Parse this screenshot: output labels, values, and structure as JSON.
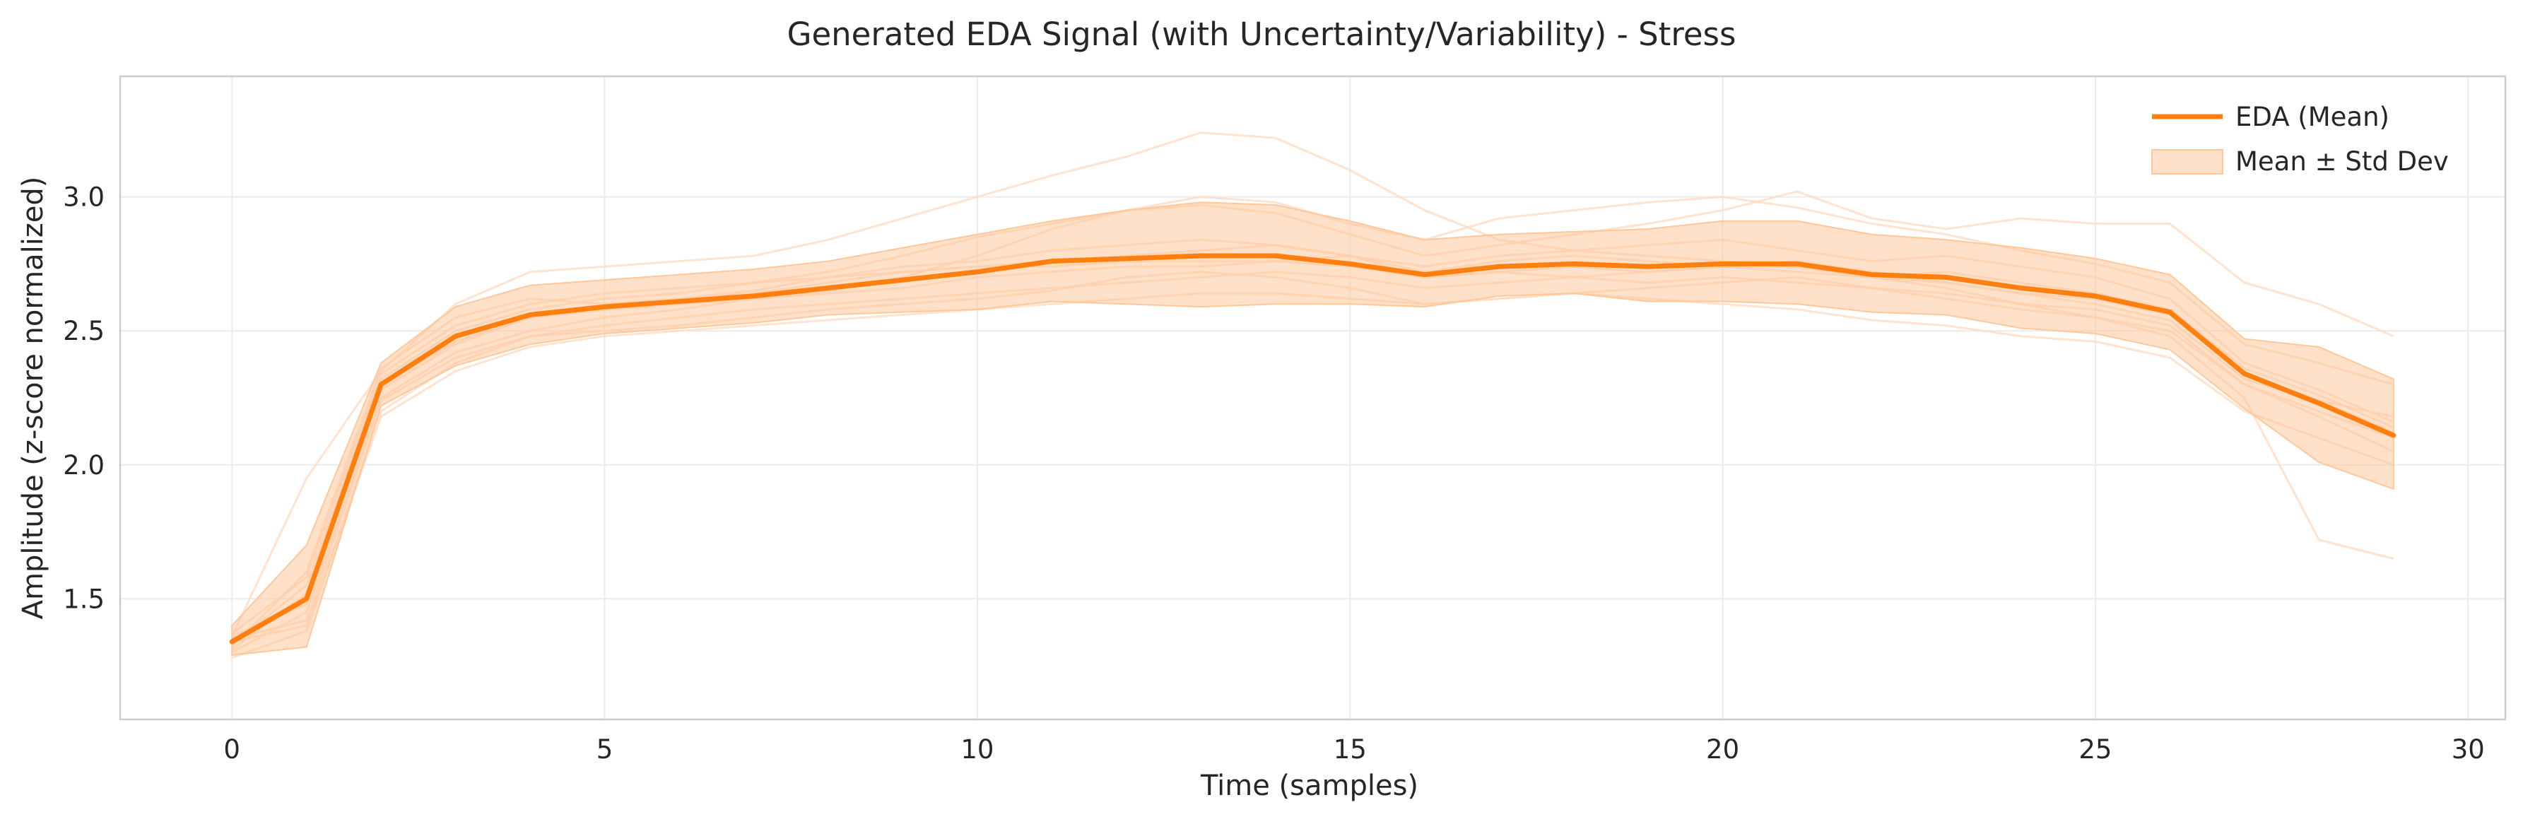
{
  "chart_data": {
    "type": "line",
    "title": "Generated EDA Signal (with Uncertainty/Variability) - Stress",
    "xlabel": "Time (samples)",
    "ylabel": "Amplitude (z-score normalized)",
    "xlim": [
      -1.5,
      30.5
    ],
    "ylim": [
      1.05,
      3.45
    ],
    "x_ticks": [
      0,
      5,
      10,
      15,
      20,
      25,
      30
    ],
    "y_ticks": [
      1.5,
      2.0,
      2.5,
      3.0
    ],
    "grid": true,
    "legend_position": "top-right",
    "colors": {
      "mean": "#ff7f0e",
      "band": "#ffc79a",
      "samples": "#ffd9bd"
    },
    "x": [
      0,
      1,
      2,
      3,
      4,
      5,
      6,
      7,
      8,
      9,
      10,
      11,
      12,
      13,
      14,
      15,
      16,
      17,
      18,
      19,
      20,
      21,
      22,
      23,
      24,
      25,
      26,
      27,
      28,
      29
    ],
    "series": [
      {
        "name": "EDA (Mean)",
        "values": [
          1.34,
          1.5,
          2.3,
          2.48,
          2.56,
          2.59,
          2.61,
          2.63,
          2.66,
          2.69,
          2.72,
          2.76,
          2.77,
          2.78,
          2.78,
          2.75,
          2.71,
          2.74,
          2.75,
          2.74,
          2.75,
          2.75,
          2.71,
          2.7,
          2.66,
          2.63,
          2.57,
          2.34,
          2.23,
          2.11
        ]
      },
      {
        "name": "Mean ± Std Dev",
        "upper": [
          1.4,
          1.7,
          2.38,
          2.59,
          2.67,
          2.69,
          2.71,
          2.73,
          2.76,
          2.81,
          2.86,
          2.91,
          2.95,
          2.98,
          2.97,
          2.91,
          2.84,
          2.86,
          2.87,
          2.88,
          2.91,
          2.91,
          2.86,
          2.84,
          2.81,
          2.77,
          2.71,
          2.47,
          2.44,
          2.32
        ],
        "lower": [
          1.29,
          1.32,
          2.22,
          2.37,
          2.45,
          2.49,
          2.51,
          2.53,
          2.56,
          2.57,
          2.58,
          2.61,
          2.6,
          2.59,
          2.6,
          2.6,
          2.59,
          2.63,
          2.64,
          2.61,
          2.61,
          2.6,
          2.57,
          2.56,
          2.51,
          2.49,
          2.43,
          2.21,
          2.01,
          1.91
        ]
      }
    ],
    "sample_traces": [
      [
        1.36,
        1.95,
        2.35,
        2.6,
        2.72,
        2.74,
        2.76,
        2.78,
        2.84,
        2.92,
        3.0,
        3.08,
        3.15,
        3.24,
        3.22,
        3.1,
        2.95,
        2.84,
        2.8,
        2.78,
        2.76,
        2.74,
        2.7,
        2.66,
        2.6,
        2.55,
        2.48,
        2.25,
        1.72,
        1.65
      ],
      [
        1.3,
        1.45,
        2.25,
        2.42,
        2.5,
        2.55,
        2.58,
        2.62,
        2.65,
        2.7,
        2.78,
        2.88,
        2.95,
        3.0,
        2.98,
        2.9,
        2.84,
        2.92,
        2.95,
        2.98,
        3.0,
        2.96,
        2.9,
        2.86,
        2.8,
        2.75,
        2.68,
        2.45,
        2.38,
        2.3
      ],
      [
        1.28,
        1.38,
        2.2,
        2.38,
        2.48,
        2.5,
        2.52,
        2.55,
        2.58,
        2.6,
        2.62,
        2.65,
        2.7,
        2.72,
        2.7,
        2.66,
        2.6,
        2.62,
        2.64,
        2.66,
        2.68,
        2.7,
        2.66,
        2.62,
        2.58,
        2.55,
        2.5,
        2.3,
        2.18,
        2.05
      ],
      [
        1.33,
        1.55,
        2.32,
        2.5,
        2.58,
        2.62,
        2.64,
        2.68,
        2.72,
        2.78,
        2.85,
        2.9,
        2.95,
        2.97,
        2.94,
        2.86,
        2.78,
        2.82,
        2.86,
        2.9,
        2.95,
        3.02,
        2.92,
        2.88,
        2.92,
        2.9,
        2.9,
        2.68,
        2.6,
        2.48
      ],
      [
        1.36,
        1.48,
        2.28,
        2.45,
        2.55,
        2.58,
        2.6,
        2.62,
        2.64,
        2.66,
        2.7,
        2.72,
        2.74,
        2.74,
        2.76,
        2.78,
        2.7,
        2.72,
        2.7,
        2.68,
        2.7,
        2.68,
        2.66,
        2.64,
        2.6,
        2.58,
        2.52,
        2.3,
        2.2,
        2.1
      ],
      [
        1.32,
        1.6,
        2.36,
        2.55,
        2.62,
        2.6,
        2.62,
        2.65,
        2.7,
        2.74,
        2.76,
        2.8,
        2.82,
        2.84,
        2.82,
        2.78,
        2.74,
        2.78,
        2.8,
        2.82,
        2.84,
        2.8,
        2.76,
        2.78,
        2.74,
        2.7,
        2.62,
        2.38,
        2.28,
        2.16
      ],
      [
        1.35,
        1.42,
        2.24,
        2.4,
        2.48,
        2.52,
        2.55,
        2.58,
        2.6,
        2.62,
        2.64,
        2.66,
        2.68,
        2.7,
        2.72,
        2.7,
        2.66,
        2.68,
        2.7,
        2.72,
        2.74,
        2.76,
        2.72,
        2.68,
        2.64,
        2.6,
        2.54,
        2.32,
        2.24,
        2.18
      ],
      [
        1.31,
        1.52,
        2.3,
        2.46,
        2.55,
        2.58,
        2.62,
        2.64,
        2.68,
        2.72,
        2.74,
        2.76,
        2.78,
        2.8,
        2.82,
        2.78,
        2.72,
        2.76,
        2.78,
        2.76,
        2.74,
        2.72,
        2.7,
        2.72,
        2.68,
        2.64,
        2.58,
        2.36,
        2.26,
        2.14
      ],
      [
        1.34,
        1.4,
        2.18,
        2.35,
        2.44,
        2.48,
        2.5,
        2.52,
        2.54,
        2.56,
        2.58,
        2.6,
        2.62,
        2.64,
        2.64,
        2.62,
        2.6,
        2.62,
        2.64,
        2.62,
        2.6,
        2.58,
        2.54,
        2.52,
        2.48,
        2.46,
        2.4,
        2.2,
        2.1,
        2.0
      ],
      [
        1.37,
        1.58,
        2.34,
        2.52,
        2.6,
        2.64,
        2.66,
        2.68,
        2.7,
        2.72,
        2.74,
        2.74,
        2.76,
        2.76,
        2.76,
        2.74,
        2.7,
        2.72,
        2.74,
        2.72,
        2.74,
        2.74,
        2.7,
        2.68,
        2.64,
        2.62,
        2.56,
        2.34,
        2.24,
        2.12
      ]
    ]
  }
}
